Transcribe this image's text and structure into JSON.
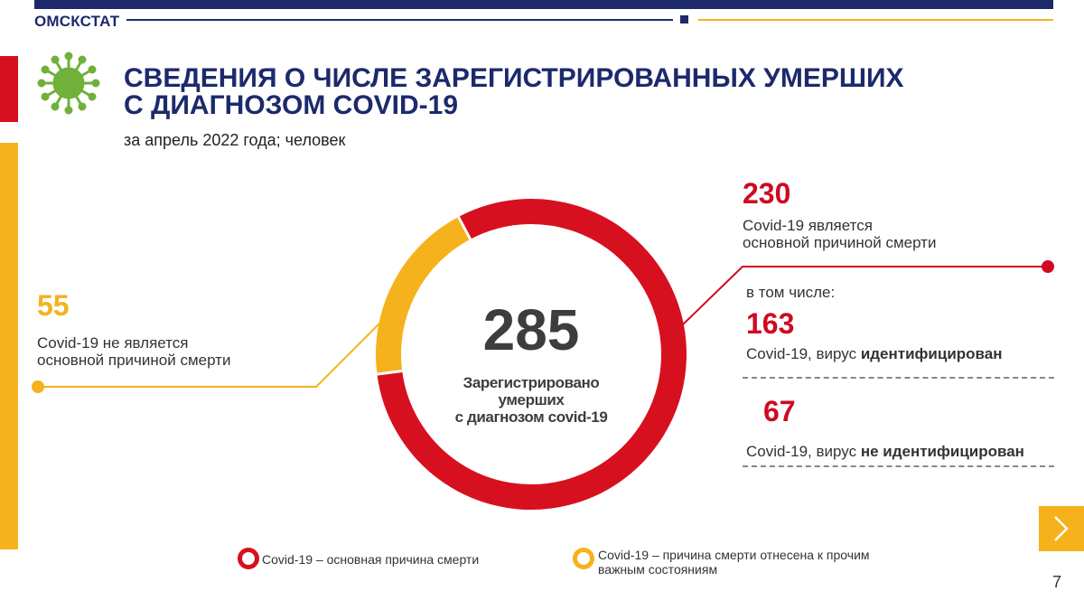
{
  "header": {
    "brand": "ОМСКСТАТ",
    "title_line1": "СВЕДЕНИЯ О ЧИСЛЕ ЗАРЕГИСТРИРОВАННЫХ УМЕРШИХ",
    "title_line2": "С ДИАГНОЗОМ COVID-19",
    "subtitle": "за апрель 2022 года; человек"
  },
  "colors": {
    "navy": "#1c2a6c",
    "red": "#d7101f",
    "yellow": "#f5b21c",
    "virus": "#6fb13a"
  },
  "icons": {
    "virus": "virus-icon",
    "next": "chevron-right-icon"
  },
  "chart_data": {
    "type": "pie",
    "donut": true,
    "total": 285,
    "center_label": [
      "Зарегистрировано",
      "умерших",
      "с диагнозом covid-19"
    ],
    "slices": [
      {
        "name": "Covid-19 – основная причина смерти",
        "value": 230,
        "color": "#d7101f"
      },
      {
        "name": "Covid-19 – причина смерти отнесена к прочим важным состояниям",
        "value": 55,
        "color": "#f5b21c"
      }
    ]
  },
  "callouts": {
    "main": {
      "value": "230",
      "label_line1": "Covid-19 является",
      "label_line2": "основной причиной смерти"
    },
    "including": "в том числе:",
    "identified": {
      "value": "163",
      "prefix": "Covid-19, вирус ",
      "bold": "идентифицирован"
    },
    "not_identified": {
      "value": "67",
      "prefix": "Covid-19, вирус ",
      "bold": "не идентифицирован"
    },
    "other": {
      "value": "55",
      "label_line1": "Covid-19 не является",
      "label_line2": "основной причиной смерти"
    }
  },
  "legend": {
    "red_label": "Covid-19 – основная причина  смерти",
    "yellow_line1": "Covid-19 – причина  смерти отнесена к прочим",
    "yellow_line2": "важным  состояниям"
  },
  "page_number": "7"
}
